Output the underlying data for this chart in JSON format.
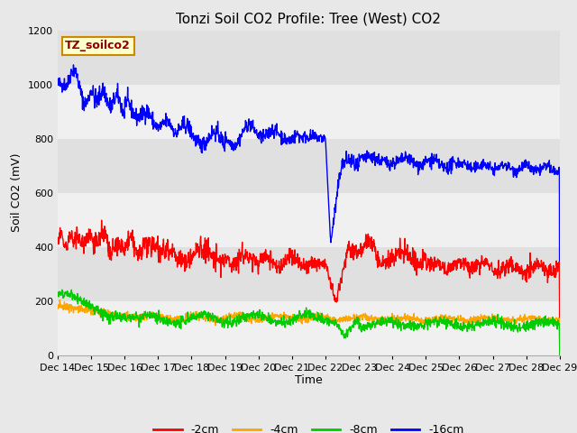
{
  "title": "Tonzi Soil CO2 Profile: Tree (West) CO2",
  "ylabel": "Soil CO2 (mV)",
  "xlabel": "Time",
  "legend_label": "TZ_soilco2",
  "ylim": [
    0,
    1200
  ],
  "yticks": [
    0,
    200,
    400,
    600,
    800,
    1000,
    1200
  ],
  "xtick_labels": [
    "Dec 14",
    "Dec 15",
    "Dec 16",
    "Dec 17",
    "Dec 18",
    "Dec 19",
    "Dec 20",
    "Dec 21",
    "Dec 22",
    "Dec 23",
    "Dec 24",
    "Dec 25",
    "Dec 26",
    "Dec 27",
    "Dec 28",
    "Dec 29"
  ],
  "series_colors": {
    "-2cm": "#ff0000",
    "-4cm": "#ffa500",
    "-8cm": "#00cc00",
    "-16cm": "#0000ff"
  },
  "fig_bg_color": "#e8e8e8",
  "plot_bg_color": "#e0e0e0",
  "white_band_color": "#f0f0f0",
  "title_fontsize": 11,
  "axis_fontsize": 9,
  "tick_fontsize": 8,
  "legend_fontsize": 9,
  "line_width": 1.0
}
